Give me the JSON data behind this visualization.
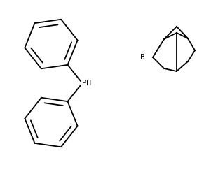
{
  "background_color": "#ffffff",
  "line_color": "#000000",
  "line_width": 1.3,
  "text_color": "#000000",
  "ph_label": "PH",
  "b_label": "B",
  "ph_label_fontsize": 7,
  "b_label_fontsize": 7,
  "figsize": [
    3.11,
    2.49
  ],
  "dpi": 100
}
